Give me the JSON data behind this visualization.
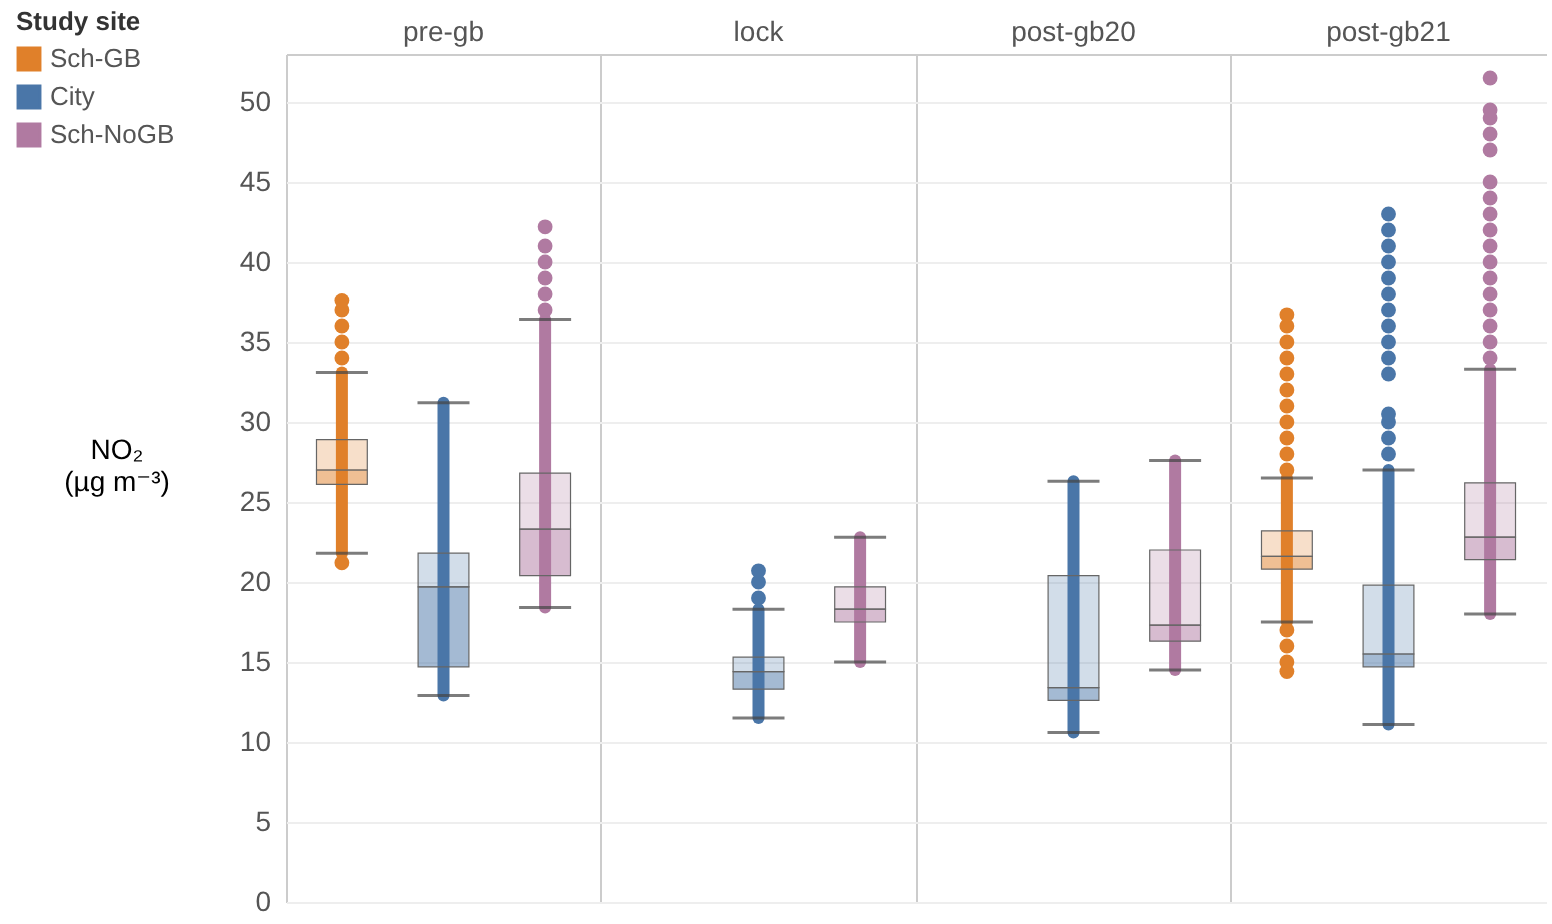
{
  "chart_data": {
    "type": "box",
    "ylabel": "NO₂ (µg m⁻³)",
    "legend_title": "Study site",
    "legend": "top left",
    "grid": true,
    "categories": [
      "pre-gb",
      "lock",
      "post-gb20",
      "post-gb21"
    ],
    "ylim": [
      0,
      53
    ],
    "yticks": [
      0,
      5,
      10,
      15,
      20,
      25,
      30,
      35,
      40,
      45,
      50
    ],
    "series": [
      {
        "name": "Sch-GB",
        "color": "#e0802a",
        "boxes": [
          {
            "low": 21.8,
            "q1": 26.1,
            "median": 27.0,
            "q3": 28.9,
            "high": 33.1,
            "outliers": [
              34,
              35,
              36,
              37,
              37.6,
              21.2
            ]
          },
          null,
          null,
          {
            "low": 17.5,
            "q1": 20.8,
            "median": 21.6,
            "q3": 23.2,
            "high": 26.5,
            "outliers": [
              27,
              28,
              29,
              30,
              31,
              32,
              33,
              34,
              35,
              36,
              36.7,
              17,
              16,
              15,
              14.4
            ]
          }
        ]
      },
      {
        "name": "City",
        "color": "#4a76a8",
        "boxes": [
          {
            "low": 12.9,
            "q1": 14.7,
            "median": 19.7,
            "q3": 21.8,
            "high": 31.2
          },
          {
            "low": 11.5,
            "q1": 13.3,
            "median": 14.4,
            "q3": 15.3,
            "high": 18.3,
            "outliers": [
              19,
              20,
              20.7
            ]
          },
          {
            "low": 10.6,
            "q1": 12.6,
            "median": 13.4,
            "q3": 20.4,
            "high": 26.3
          },
          {
            "low": 11.1,
            "q1": 14.7,
            "median": 15.5,
            "q3": 19.8,
            "high": 27.0,
            "outliers": [
              28,
              29,
              30,
              30.5,
              33,
              34,
              35,
              36,
              37,
              38,
              39,
              40,
              41,
              42,
              43
            ]
          }
        ]
      },
      {
        "name": "Sch-NoGB",
        "color": "#b07aa1",
        "boxes": [
          {
            "low": 18.4,
            "q1": 20.4,
            "median": 23.3,
            "q3": 26.8,
            "high": 36.4,
            "outliers": [
              37,
              38,
              39,
              40,
              41,
              42.2
            ]
          },
          {
            "low": 15.0,
            "q1": 17.5,
            "median": 18.3,
            "q3": 19.7,
            "high": 22.8
          },
          {
            "low": 14.5,
            "q1": 16.3,
            "median": 17.3,
            "q3": 22.0,
            "high": 27.6
          },
          {
            "low": 18.0,
            "q1": 21.4,
            "median": 22.8,
            "q3": 26.2,
            "high": 33.3,
            "outliers": [
              34,
              35,
              36,
              37,
              38,
              39,
              40,
              41,
              42,
              43,
              44,
              45,
              47,
              48,
              49,
              49.5,
              51.5
            ]
          }
        ]
      }
    ]
  }
}
